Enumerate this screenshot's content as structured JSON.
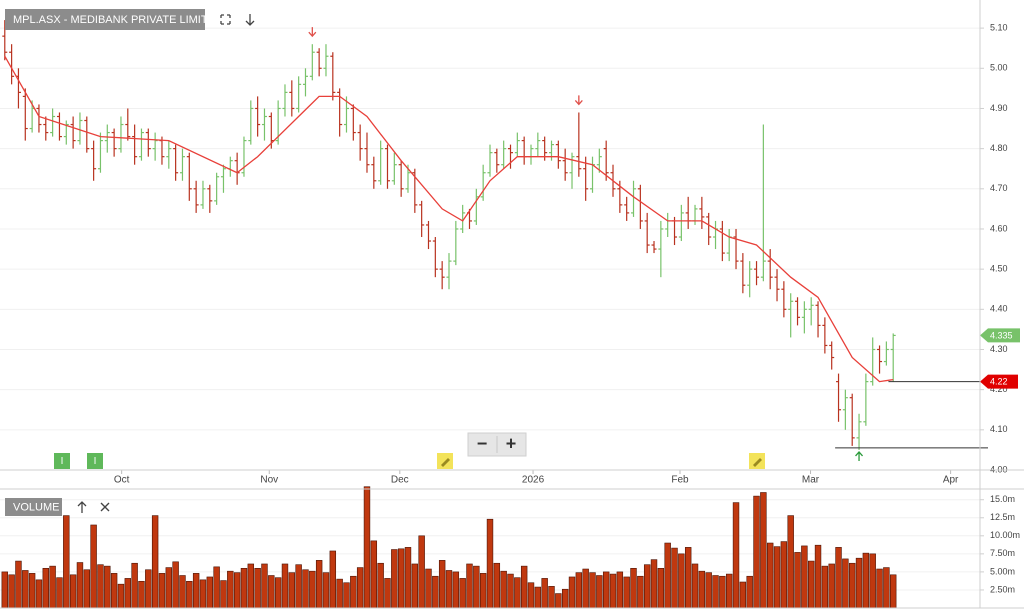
{
  "chart_data": [
    {
      "type": "ohlc",
      "title": "MPL.ASX - MEDIBANK PRIVATE LIMITED",
      "x": [
        1,
        2,
        3,
        4,
        5,
        6,
        7,
        8,
        9,
        10,
        11,
        12,
        13,
        14,
        15,
        16,
        17,
        18,
        19,
        20,
        21,
        22,
        23,
        24,
        25,
        26,
        27,
        28,
        29,
        30,
        31,
        32,
        33,
        34,
        35,
        36,
        37,
        38,
        39,
        40,
        41,
        42,
        43,
        44,
        45,
        46,
        47,
        48,
        49,
        50,
        51,
        52,
        53,
        54,
        55,
        56,
        57,
        58,
        59,
        60,
        61,
        62,
        63,
        64,
        65,
        66,
        67,
        68,
        69,
        70,
        71,
        72,
        73,
        74,
        75,
        76,
        77,
        78,
        79,
        80,
        81,
        82,
        83,
        84,
        85,
        86,
        87,
        88,
        89,
        90,
        91,
        92,
        93,
        94,
        95,
        96,
        97,
        98,
        99,
        100,
        101,
        102,
        103,
        104,
        105,
        106,
        107,
        108,
        109,
        110,
        111,
        112,
        113,
        114,
        115,
        116,
        117,
        118,
        119,
        120,
        121,
        122,
        123,
        124,
        125,
        126,
        127,
        128,
        129,
        130,
        131
      ],
      "ohlc": [
        [
          5.08,
          5.12,
          5.02,
          5.04
        ],
        [
          5.04,
          5.06,
          4.96,
          4.98
        ],
        [
          4.98,
          5.0,
          4.9,
          4.94
        ],
        [
          4.93,
          4.95,
          4.82,
          4.85
        ],
        [
          4.85,
          4.92,
          4.84,
          4.9
        ],
        [
          4.9,
          4.91,
          4.84,
          4.86
        ],
        [
          4.86,
          4.88,
          4.82,
          4.84
        ],
        [
          4.84,
          4.9,
          4.83,
          4.88
        ],
        [
          4.88,
          4.89,
          4.82,
          4.83
        ],
        [
          4.83,
          4.87,
          4.81,
          4.86
        ],
        [
          4.86,
          4.88,
          4.8,
          4.82
        ],
        [
          4.82,
          4.89,
          4.81,
          4.87
        ],
        [
          4.87,
          4.88,
          4.79,
          4.8
        ],
        [
          4.8,
          4.82,
          4.72,
          4.75
        ],
        [
          4.75,
          4.84,
          4.74,
          4.82
        ],
        [
          4.82,
          4.86,
          4.79,
          4.84
        ],
        [
          4.84,
          4.85,
          4.78,
          4.8
        ],
        [
          4.8,
          4.88,
          4.79,
          4.86
        ],
        [
          4.86,
          4.9,
          4.82,
          4.83
        ],
        [
          4.83,
          4.86,
          4.76,
          4.78
        ],
        [
          4.78,
          4.85,
          4.77,
          4.84
        ],
        [
          4.84,
          4.85,
          4.78,
          4.8
        ],
        [
          4.8,
          4.84,
          4.77,
          4.82
        ],
        [
          4.82,
          4.83,
          4.76,
          4.78
        ],
        [
          4.78,
          4.82,
          4.75,
          4.8
        ],
        [
          4.8,
          4.81,
          4.72,
          4.74
        ],
        [
          4.74,
          4.8,
          4.72,
          4.78
        ],
        [
          4.78,
          4.79,
          4.67,
          4.7
        ],
        [
          4.7,
          4.72,
          4.64,
          4.66
        ],
        [
          4.66,
          4.72,
          4.65,
          4.7
        ],
        [
          4.7,
          4.71,
          4.64,
          4.67
        ],
        [
          4.67,
          4.74,
          4.66,
          4.73
        ],
        [
          4.73,
          4.76,
          4.69,
          4.75
        ],
        [
          4.75,
          4.78,
          4.73,
          4.77
        ],
        [
          4.77,
          4.79,
          4.71,
          4.74
        ],
        [
          4.74,
          4.83,
          4.73,
          4.82
        ],
        [
          4.82,
          4.92,
          4.81,
          4.9
        ],
        [
          4.9,
          4.93,
          4.83,
          4.86
        ],
        [
          4.86,
          4.9,
          4.82,
          4.88
        ],
        [
          4.88,
          4.89,
          4.8,
          4.82
        ],
        [
          4.82,
          4.92,
          4.81,
          4.9
        ],
        [
          4.9,
          4.96,
          4.88,
          4.94
        ],
        [
          4.94,
          4.97,
          4.88,
          4.9
        ],
        [
          4.9,
          4.98,
          4.89,
          4.96
        ],
        [
          4.96,
          5.0,
          4.93,
          4.98
        ],
        [
          4.98,
          5.06,
          4.97,
          5.04
        ],
        [
          5.04,
          5.05,
          4.98,
          5.0
        ],
        [
          5.0,
          5.06,
          4.98,
          5.03
        ],
        [
          5.03,
          5.04,
          4.92,
          4.94
        ],
        [
          4.94,
          4.95,
          4.83,
          4.86
        ],
        [
          4.86,
          4.93,
          4.84,
          4.9
        ],
        [
          4.9,
          4.91,
          4.82,
          4.84
        ],
        [
          4.84,
          4.86,
          4.77,
          4.8
        ],
        [
          4.8,
          4.84,
          4.74,
          4.76
        ],
        [
          4.76,
          4.78,
          4.7,
          4.72
        ],
        [
          4.72,
          4.82,
          4.71,
          4.8
        ],
        [
          4.8,
          4.81,
          4.7,
          4.72
        ],
        [
          4.72,
          4.79,
          4.71,
          4.76
        ],
        [
          4.76,
          4.77,
          4.68,
          4.7
        ],
        [
          4.7,
          4.76,
          4.69,
          4.74
        ],
        [
          4.74,
          4.75,
          4.64,
          4.66
        ],
        [
          4.66,
          4.67,
          4.58,
          4.61
        ],
        [
          4.61,
          4.62,
          4.55,
          4.57
        ],
        [
          4.57,
          4.58,
          4.48,
          4.5
        ],
        [
          4.5,
          4.52,
          4.45,
          4.48
        ],
        [
          4.48,
          4.54,
          4.45,
          4.52
        ],
        [
          4.52,
          4.62,
          4.51,
          4.6
        ],
        [
          4.6,
          4.66,
          4.59,
          4.64
        ],
        [
          4.64,
          4.65,
          4.6,
          4.62
        ],
        [
          4.62,
          4.7,
          4.61,
          4.68
        ],
        [
          4.68,
          4.76,
          4.67,
          4.74
        ],
        [
          4.74,
          4.81,
          4.73,
          4.79
        ],
        [
          4.79,
          4.8,
          4.74,
          4.76
        ],
        [
          4.76,
          4.82,
          4.75,
          4.8
        ],
        [
          4.8,
          4.81,
          4.75,
          4.79
        ],
        [
          4.79,
          4.84,
          4.78,
          4.82
        ],
        [
          4.82,
          4.83,
          4.76,
          4.78
        ],
        [
          4.78,
          4.81,
          4.76,
          4.8
        ],
        [
          4.8,
          4.84,
          4.78,
          4.82
        ],
        [
          4.82,
          4.83,
          4.77,
          4.79
        ],
        [
          4.79,
          4.82,
          4.77,
          4.81
        ],
        [
          4.81,
          4.82,
          4.75,
          4.77
        ],
        [
          4.77,
          4.8,
          4.72,
          4.74
        ],
        [
          4.74,
          4.79,
          4.7,
          4.78
        ],
        [
          4.78,
          4.89,
          4.73,
          4.75
        ],
        [
          4.75,
          4.78,
          4.67,
          4.7
        ],
        [
          4.7,
          4.78,
          4.69,
          4.76
        ],
        [
          4.76,
          4.8,
          4.74,
          4.78
        ],
        [
          4.8,
          4.82,
          4.72,
          4.74
        ],
        [
          4.74,
          4.76,
          4.68,
          4.7
        ],
        [
          4.7,
          4.72,
          4.64,
          4.66
        ],
        [
          4.66,
          4.68,
          4.62,
          4.64
        ],
        [
          4.64,
          4.72,
          4.63,
          4.7
        ],
        [
          4.7,
          4.71,
          4.6,
          4.62
        ],
        [
          4.62,
          4.64,
          4.54,
          4.56
        ],
        [
          4.56,
          4.57,
          4.54,
          4.55
        ],
        [
          4.55,
          4.62,
          4.48,
          4.6
        ],
        [
          4.6,
          4.64,
          4.58,
          4.62
        ],
        [
          4.62,
          4.63,
          4.56,
          4.58
        ],
        [
          4.58,
          4.66,
          4.57,
          4.64
        ],
        [
          4.64,
          4.68,
          4.6,
          4.62
        ],
        [
          4.62,
          4.66,
          4.61,
          4.65
        ],
        [
          4.65,
          4.68,
          4.6,
          4.63
        ],
        [
          4.63,
          4.64,
          4.56,
          4.58
        ],
        [
          4.58,
          4.62,
          4.55,
          4.6
        ],
        [
          4.6,
          4.62,
          4.52,
          4.54
        ],
        [
          4.54,
          4.6,
          4.52,
          4.58
        ],
        [
          4.58,
          4.6,
          4.5,
          4.52
        ],
        [
          4.52,
          4.54,
          4.44,
          4.46
        ],
        [
          4.46,
          4.52,
          4.43,
          4.5
        ],
        [
          4.5,
          4.52,
          4.46,
          4.48
        ],
        [
          4.48,
          4.86,
          4.47,
          4.52
        ],
        [
          4.52,
          4.55,
          4.45,
          4.48
        ],
        [
          4.48,
          4.5,
          4.42,
          4.45
        ],
        [
          4.45,
          4.47,
          4.38,
          4.4
        ],
        [
          4.4,
          4.44,
          4.33,
          4.42
        ],
        [
          4.42,
          4.43,
          4.36,
          4.38
        ],
        [
          4.38,
          4.42,
          4.34,
          4.4
        ],
        [
          4.4,
          4.43,
          4.36,
          4.41
        ],
        [
          4.41,
          4.42,
          4.33,
          4.36
        ],
        [
          4.36,
          4.38,
          4.29,
          4.31
        ],
        [
          4.31,
          4.32,
          4.25,
          4.28
        ],
        [
          4.22,
          4.24,
          4.12,
          4.15
        ],
        [
          4.15,
          4.2,
          4.1,
          4.18
        ],
        [
          4.18,
          4.19,
          4.06,
          4.08
        ],
        [
          4.08,
          4.14,
          4.05,
          4.12
        ],
        [
          4.12,
          4.24,
          4.11,
          4.22
        ],
        [
          4.22,
          4.33,
          4.21,
          4.3
        ],
        [
          4.3,
          4.31,
          4.24,
          4.27
        ],
        [
          4.27,
          4.32,
          4.26,
          4.3
        ],
        [
          4.3,
          4.34,
          4.22,
          4.335
        ]
      ],
      "up_color": "#78c26a",
      "down_color": "#b8321f",
      "flat_color": "#222222",
      "xlim": [
        0.3,
        143.7
      ],
      "xticks": [
        {
          "value": 18.1,
          "label": "Oct"
        },
        {
          "value": 39.7,
          "label": "Nov"
        },
        {
          "value": 58.8,
          "label": "Dec"
        },
        {
          "value": 78.3,
          "label": "2026"
        },
        {
          "value": 99.8,
          "label": "Feb"
        },
        {
          "value": 118.9,
          "label": "Mar"
        },
        {
          "value": 139.4,
          "label": "Apr"
        }
      ],
      "ylim": [
        4.0,
        5.17
      ],
      "yticks": [
        {
          "value": 4.0,
          "label": "4.00"
        },
        {
          "value": 4.1,
          "label": "4.10"
        },
        {
          "value": 4.2,
          "label": "4.20"
        },
        {
          "value": 4.3,
          "label": "4.30"
        },
        {
          "value": 4.4,
          "label": "4.40"
        },
        {
          "value": 4.5,
          "label": "4.50"
        },
        {
          "value": 4.6,
          "label": "4.60"
        },
        {
          "value": 4.7,
          "label": "4.70"
        },
        {
          "value": 4.8,
          "label": "4.80"
        },
        {
          "value": 4.9,
          "label": "4.90"
        },
        {
          "value": 5.0,
          "label": "5.00"
        },
        {
          "value": 5.1,
          "label": "5.10"
        }
      ],
      "grid": true,
      "ma": {
        "color": "#e8403a",
        "x": [
          1,
          6,
          15,
          25,
          35,
          38,
          44,
          47,
          50,
          54,
          59,
          65,
          68,
          72,
          76,
          82,
          87,
          93,
          98,
          103,
          107,
          111,
          116,
          120,
          125,
          129,
          131
        ],
        "values": [
          5.03,
          4.88,
          4.83,
          4.82,
          4.74,
          4.78,
          4.88,
          4.93,
          4.93,
          4.88,
          4.77,
          4.65,
          4.62,
          4.72,
          4.78,
          4.78,
          4.76,
          4.68,
          4.62,
          4.62,
          4.58,
          4.56,
          4.48,
          4.43,
          4.28,
          4.22,
          4.225
        ]
      },
      "last_price": {
        "value": 4.335,
        "label": "4.335",
        "color": "#78c26a"
      },
      "hlines": [
        {
          "value": 4.22,
          "x": 130.3,
          "label": "4.22",
          "color": "#e00000"
        },
        {
          "value": 4.055,
          "x": 122.5
        }
      ],
      "signals": [
        {
          "x": 46,
          "value": 5.09,
          "type": "sell"
        },
        {
          "x": 85,
          "value": 4.92,
          "type": "sell"
        },
        {
          "x": 126,
          "value": 4.035,
          "type": "buy"
        }
      ]
    },
    {
      "type": "bar",
      "title": "VOLUME",
      "x": [
        1,
        2,
        3,
        4,
        5,
        6,
        7,
        8,
        9,
        10,
        11,
        12,
        13,
        14,
        15,
        16,
        17,
        18,
        19,
        20,
        21,
        22,
        23,
        24,
        25,
        26,
        27,
        28,
        29,
        30,
        31,
        32,
        33,
        34,
        35,
        36,
        37,
        38,
        39,
        40,
        41,
        42,
        43,
        44,
        45,
        46,
        47,
        48,
        49,
        50,
        51,
        52,
        53,
        54,
        55,
        56,
        57,
        58,
        59,
        60,
        61,
        62,
        63,
        64,
        65,
        66,
        67,
        68,
        69,
        70,
        71,
        72,
        73,
        74,
        75,
        76,
        77,
        78,
        79,
        80,
        81,
        82,
        83,
        84,
        85,
        86,
        87,
        88,
        89,
        90,
        91,
        92,
        93,
        94,
        95,
        96,
        97,
        98,
        99,
        100,
        101,
        102,
        103,
        104,
        105,
        106,
        107,
        108,
        109,
        110,
        111,
        112,
        113,
        114,
        115,
        116,
        117,
        118,
        119,
        120,
        121,
        122,
        123,
        124,
        125,
        126,
        127,
        128,
        129,
        130,
        131
      ],
      "values": [
        5.0,
        4.6,
        6.5,
        5.2,
        4.8,
        3.9,
        5.5,
        5.8,
        4.2,
        12.8,
        4.6,
        6.3,
        5.3,
        11.5,
        6.0,
        5.8,
        4.8,
        3.3,
        4.1,
        6.2,
        3.7,
        5.3,
        12.8,
        4.8,
        5.6,
        6.4,
        4.5,
        3.7,
        4.8,
        3.9,
        4.3,
        5.7,
        3.8,
        5.1,
        4.9,
        5.5,
        6.1,
        5.5,
        6.1,
        4.5,
        4.2,
        6.1,
        4.9,
        6.0,
        5.3,
        5.1,
        6.6,
        4.9,
        7.9,
        4.0,
        3.5,
        4.4,
        5.6,
        16.8,
        9.3,
        6.2,
        4.1,
        8.1,
        8.2,
        8.4,
        6.1,
        10.0,
        5.4,
        4.4,
        6.6,
        5.2,
        5.0,
        4.1,
        6.1,
        5.8,
        4.8,
        12.3,
        6.2,
        5.1,
        4.7,
        4.2,
        5.8,
        3.5,
        2.9,
        4.1,
        3.0,
        2.0,
        2.6,
        4.3,
        4.9,
        5.4,
        4.9,
        4.5,
        5.0,
        4.7,
        5.0,
        4.3,
        5.5,
        4.4,
        6.0,
        6.7,
        5.5,
        9.0,
        8.3,
        7.5,
        8.4,
        6.1,
        5.1,
        4.9,
        4.5,
        4.4,
        4.7,
        14.6,
        3.6,
        4.4,
        15.5,
        16.0,
        9.0,
        8.5,
        9.2,
        12.8,
        7.7,
        8.6,
        6.5,
        8.7,
        5.8,
        6.1,
        8.4,
        6.8,
        6.2,
        6.9,
        7.6,
        7.5,
        5.4,
        5.6,
        4.6
      ],
      "color": "#c0380f",
      "edge_color": "#4a1406",
      "xlim": [
        0.3,
        143.7
      ],
      "ylim": [
        0,
        16.9
      ],
      "yticks": [
        {
          "value": 2.5,
          "label": "2.50m"
        },
        {
          "value": 5,
          "label": "5.00m"
        },
        {
          "value": 7.5,
          "label": "7.50m"
        },
        {
          "value": 10,
          "label": "10.00m"
        },
        {
          "value": 12.5,
          "label": "12.5m"
        },
        {
          "value": 15,
          "label": "15.0m"
        }
      ],
      "grid": true
    }
  ],
  "ui": {
    "zoom_out": "−",
    "zoom_in": "+",
    "event_markers": [
      "I",
      "I"
    ]
  }
}
